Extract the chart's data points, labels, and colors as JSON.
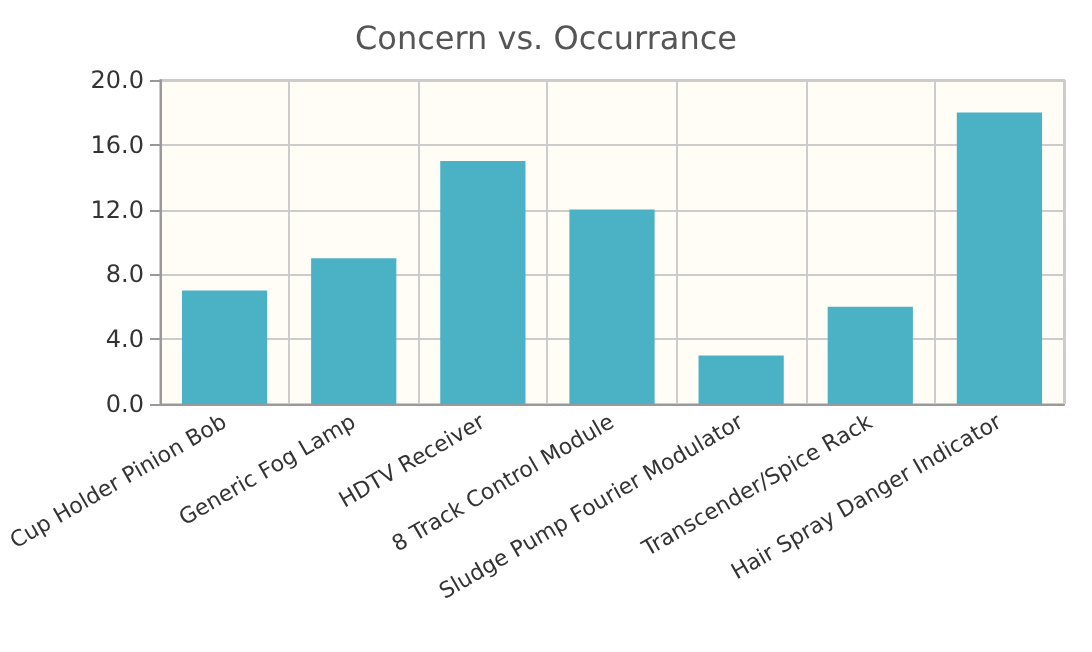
{
  "chart_data": {
    "type": "bar",
    "title": "Concern vs. Occurrance",
    "categories": [
      "Cup Holder Pinion Bob",
      "Generic Fog Lamp",
      "HDTV Receiver",
      "8 Track Control Module",
      "Sludge Pump Fourier Modulator",
      "Transcender/Spice Rack",
      "Hair Spray Danger Indicator"
    ],
    "values": [
      7,
      9,
      15,
      12,
      3,
      6,
      18
    ],
    "color": "#4bb2c5",
    "ylim": [
      0,
      20
    ],
    "yticks": [
      {
        "value": 0,
        "label": "0.0"
      },
      {
        "value": 4,
        "label": "4.0"
      },
      {
        "value": 8,
        "label": "8.0"
      },
      {
        "value": 12,
        "label": "12.0"
      },
      {
        "value": 16,
        "label": "16.0"
      },
      {
        "value": 20,
        "label": "20.0"
      }
    ],
    "grid": true
  }
}
